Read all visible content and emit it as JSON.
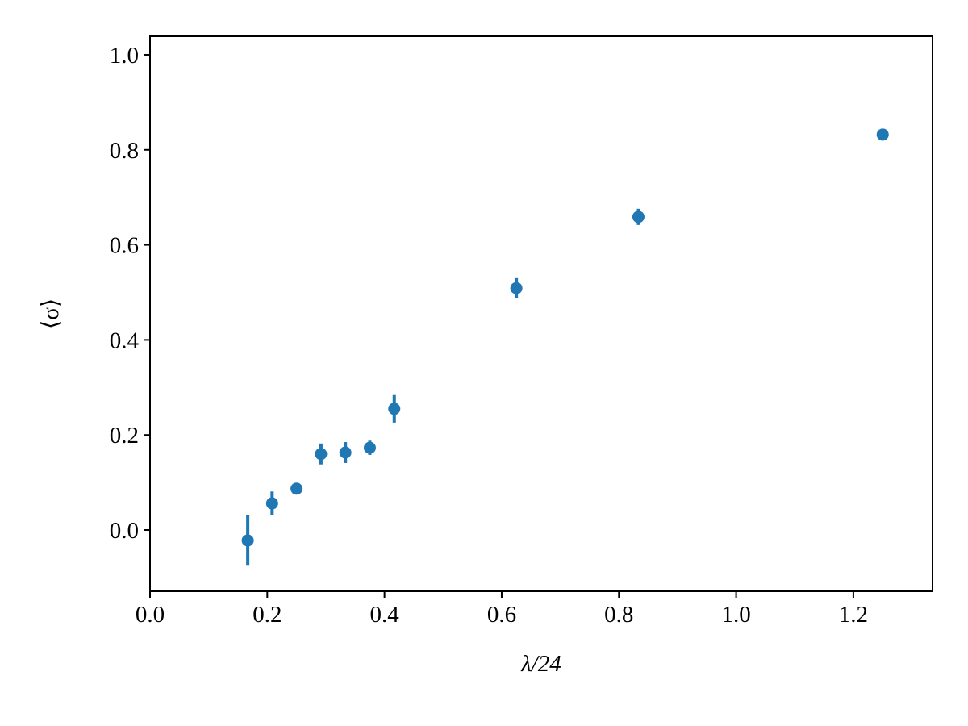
{
  "chart_data": {
    "type": "errorbar",
    "x_label": "λ/24",
    "y_label": "⟨σ⟩",
    "x": [
      0.1667,
      0.2083,
      0.25,
      0.2917,
      0.3333,
      0.375,
      0.4167,
      0.625,
      0.8333,
      1.25
    ],
    "values": [
      -0.022,
      0.056,
      0.087,
      0.16,
      0.163,
      0.173,
      0.255,
      0.509,
      0.659,
      0.832
    ],
    "errors": [
      0.053,
      0.025,
      0.012,
      0.022,
      0.022,
      0.015,
      0.029,
      0.021,
      0.017,
      0.005
    ],
    "color": "#1f77b4",
    "xlim": [
      0,
      1.335
    ],
    "ylim": [
      -0.129,
      1.039
    ],
    "xticks": [
      {
        "value": 0,
        "label": "0.0"
      },
      0.2,
      0.4,
      0.6,
      0.8,
      {
        "value": 1,
        "label": "1.0"
      },
      1.2
    ],
    "yticks": [
      {
        "value": 0,
        "label": "0.0"
      },
      0.2,
      0.4,
      0.6,
      0.8,
      {
        "value": 1,
        "label": "1.0"
      }
    ]
  }
}
